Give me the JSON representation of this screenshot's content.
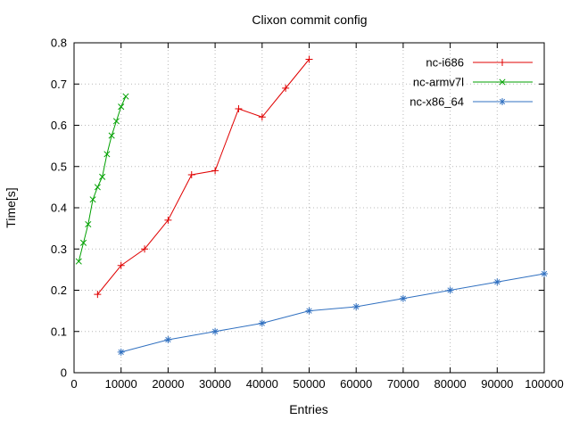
{
  "chart_data": {
    "type": "line",
    "title": "Clixon commit config",
    "xlabel": "Entries",
    "ylabel": "Time[s]",
    "xlim": [
      0,
      100000
    ],
    "ylim": [
      0,
      0.8
    ],
    "xticks": [
      0,
      10000,
      20000,
      30000,
      40000,
      50000,
      60000,
      70000,
      80000,
      90000,
      100000
    ],
    "yticks": [
      0,
      0.1,
      0.2,
      0.3,
      0.4,
      0.5,
      0.6,
      0.7,
      0.8
    ],
    "grid": true,
    "legend_position": "top-right",
    "colors": {
      "background": "#ffffff",
      "border": "#000000",
      "grid": "#b8b8b8"
    },
    "series": [
      {
        "name": "nc-i686",
        "color": "#e00000",
        "marker": "plus",
        "x": [
          5000,
          10000,
          15000,
          20000,
          25000,
          30000,
          35000,
          40000,
          45000,
          50000
        ],
        "y": [
          0.19,
          0.26,
          0.3,
          0.37,
          0.48,
          0.49,
          0.64,
          0.62,
          0.69,
          0.76
        ]
      },
      {
        "name": "nc-armv7l",
        "color": "#00a000",
        "marker": "x",
        "x": [
          1000,
          2000,
          3000,
          4000,
          5000,
          6000,
          7000,
          8000,
          9000,
          10000,
          11000
        ],
        "y": [
          0.27,
          0.315,
          0.36,
          0.42,
          0.45,
          0.475,
          0.53,
          0.575,
          0.61,
          0.645,
          0.67
        ]
      },
      {
        "name": "nc-x86_64",
        "color": "#3070c0",
        "marker": "star",
        "x": [
          10000,
          20000,
          30000,
          40000,
          50000,
          60000,
          70000,
          80000,
          90000,
          100000
        ],
        "y": [
          0.05,
          0.08,
          0.1,
          0.12,
          0.15,
          0.16,
          0.18,
          0.2,
          0.22,
          0.24
        ]
      }
    ]
  }
}
